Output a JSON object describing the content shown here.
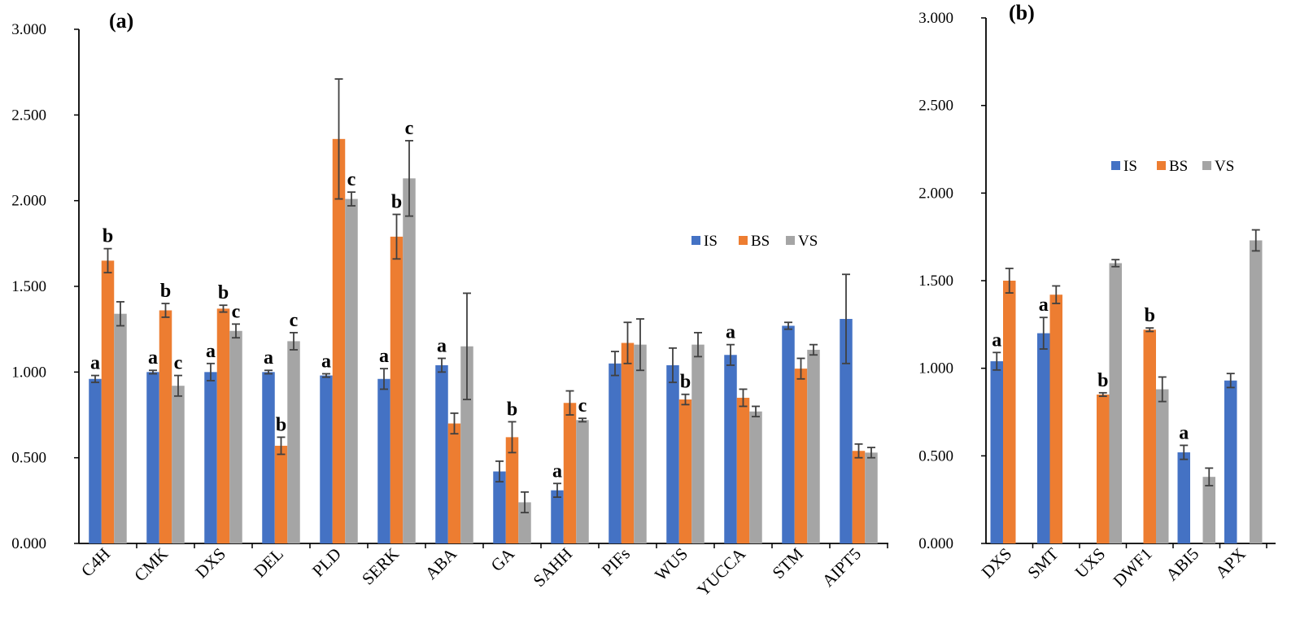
{
  "colors": {
    "IS": "#4472C4",
    "BS": "#ED7D31",
    "VS": "#A5A5A5",
    "error": "#404040",
    "axis": "#000000"
  },
  "chart_data": [
    {
      "type": "bar",
      "title": "(a)",
      "xlabel": "",
      "ylabel": "",
      "ylim": [
        0,
        3
      ],
      "yticks": [
        "0.000",
        "0.500",
        "1.000",
        "1.500",
        "2.000",
        "2.500",
        "3.000"
      ],
      "legend_position": "right-middle",
      "categories": [
        "C4H",
        "CMK",
        "DXS",
        "DEL",
        "PLD",
        "SERK",
        "ABA",
        "GA",
        "SAHH",
        "PIFs",
        "WUS",
        "YUCCA",
        "STM",
        "AIPT5"
      ],
      "series": [
        {
          "name": "IS",
          "values": [
            0.96,
            1.0,
            1.0,
            1.0,
            0.98,
            0.96,
            1.04,
            0.42,
            0.31,
            1.05,
            1.04,
            1.1,
            1.27,
            1.31
          ],
          "errors": [
            0.02,
            0.01,
            0.05,
            0.01,
            0.01,
            0.06,
            0.04,
            0.06,
            0.04,
            0.07,
            0.1,
            0.06,
            0.02,
            0.26
          ],
          "labels": [
            "a",
            "a",
            "a",
            "a",
            "a",
            "a",
            "a",
            "",
            "a",
            "",
            "",
            "a",
            "",
            ""
          ]
        },
        {
          "name": "BS",
          "values": [
            1.65,
            1.36,
            1.37,
            0.57,
            2.36,
            1.79,
            0.7,
            0.62,
            0.82,
            1.17,
            0.84,
            0.85,
            1.02,
            0.54
          ],
          "errors": [
            0.07,
            0.04,
            0.02,
            0.05,
            0.35,
            0.13,
            0.06,
            0.09,
            0.07,
            0.12,
            0.03,
            0.05,
            0.06,
            0.04
          ],
          "labels": [
            "b",
            "b",
            "b",
            "b",
            "",
            "b",
            "",
            "b",
            "",
            "",
            "b",
            "",
            "",
            ""
          ]
        },
        {
          "name": "VS",
          "values": [
            1.34,
            0.92,
            1.24,
            1.18,
            2.01,
            2.13,
            1.15,
            0.24,
            0.72,
            1.16,
            1.16,
            0.77,
            1.13,
            0.53
          ],
          "errors": [
            0.07,
            0.06,
            0.04,
            0.05,
            0.04,
            0.22,
            0.31,
            0.06,
            0.01,
            0.15,
            0.07,
            0.03,
            0.03,
            0.03
          ],
          "labels": [
            "",
            "c",
            "c",
            "c",
            "c",
            "c",
            "",
            "",
            "c",
            "",
            "",
            "",
            "",
            ""
          ]
        }
      ]
    },
    {
      "type": "bar",
      "title": "(b)",
      "xlabel": "",
      "ylabel": "",
      "ylim": [
        0,
        3
      ],
      "yticks": [
        "0.000",
        "0.500",
        "1.000",
        "1.500",
        "2.000",
        "2.500",
        "3.000"
      ],
      "legend_position": "top-right",
      "categories": [
        "DXS",
        "SMT",
        "UXS",
        "DWF1",
        "ABI5",
        "APX"
      ],
      "series": [
        {
          "name": "IS",
          "values": [
            1.04,
            1.2,
            null,
            null,
            0.52,
            0.93
          ],
          "errors": [
            0.05,
            0.09,
            0,
            0,
            0.04,
            0.04
          ],
          "labels": [
            "a",
            "a",
            "",
            "",
            "a",
            ""
          ]
        },
        {
          "name": "BS",
          "values": [
            1.5,
            1.42,
            0.85,
            1.22,
            null,
            null
          ],
          "errors": [
            0.07,
            0.05,
            0.01,
            0.01,
            0,
            0
          ],
          "labels": [
            "",
            "",
            "b",
            "b",
            "",
            ""
          ]
        },
        {
          "name": "VS",
          "values": [
            null,
            null,
            1.6,
            0.88,
            0.38,
            1.73
          ],
          "errors": [
            0,
            0,
            0.02,
            0.07,
            0.05,
            0.06
          ],
          "labels": [
            "",
            "",
            "",
            "",
            "",
            ""
          ]
        }
      ]
    }
  ]
}
